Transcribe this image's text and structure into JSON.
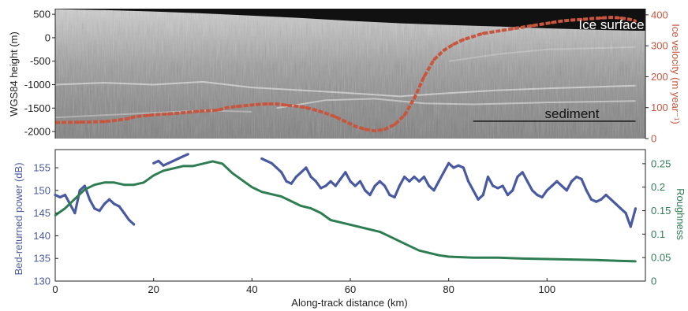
{
  "chart_data": [
    {
      "type": "line",
      "panel": "radargram",
      "image_labels": [
        "Ice surface",
        "sediment"
      ],
      "ylabel_left": "WGS84 height (m)",
      "ylabel_right": "Ice velocity (m year⁻¹)",
      "yticks_left": [
        500,
        0,
        -500,
        -1000,
        -1500,
        -2000
      ],
      "yticks_right": [
        400,
        300,
        200,
        100,
        0
      ],
      "ylim_left": [
        -2150,
        620
      ],
      "ylim_right": [
        0,
        420
      ],
      "xlim": [
        0,
        120
      ],
      "colors": {
        "velocity": "#c8553d",
        "sediment_line": "#222222",
        "radar_bg": "#9a9a9a",
        "ice_top": "#111111"
      },
      "series": [
        {
          "name": "Ice velocity",
          "x": [
            0,
            5,
            10,
            13,
            15,
            16,
            17,
            19,
            21,
            23,
            25,
            27,
            29,
            31,
            33,
            35,
            37,
            39,
            41,
            43,
            45,
            47,
            49,
            51,
            53,
            55,
            57,
            59,
            61,
            63,
            65,
            67,
            69,
            71,
            73,
            75,
            77,
            79,
            81,
            83,
            85,
            87,
            89,
            91,
            93,
            95,
            97,
            99,
            101,
            103,
            105,
            107,
            109,
            111,
            113,
            115,
            117,
            118
          ],
          "values": [
            52,
            53,
            55,
            60,
            65,
            70,
            72,
            75,
            78,
            80,
            82,
            85,
            88,
            90,
            92,
            100,
            104,
            107,
            110,
            112,
            112,
            108,
            105,
            100,
            92,
            82,
            70,
            55,
            40,
            30,
            25,
            30,
            45,
            75,
            130,
            200,
            255,
            285,
            305,
            320,
            330,
            340,
            345,
            350,
            355,
            360,
            365,
            370,
            375,
            380,
            383,
            385,
            388,
            390,
            392,
            390,
            385,
            380
          ]
        },
        {
          "name": "Ice surface",
          "x": [
            0,
            10,
            20,
            30,
            40,
            50,
            60,
            70,
            80,
            90,
            100,
            110,
            118
          ],
          "values": [
            610,
            590,
            560,
            520,
            470,
            420,
            360,
            310,
            270,
            240,
            200,
            170,
            150
          ]
        },
        {
          "name": "sediment",
          "x": [
            85,
            118
          ],
          "values": [
            -1780,
            -1780
          ]
        }
      ]
    },
    {
      "type": "line",
      "panel": "bed power and roughness",
      "xlabel": "Along-track distance (km)",
      "ylabel_left": "Bed-returned power (dB)",
      "ylabel_right": "Roughness",
      "xticks": [
        0,
        20,
        40,
        60,
        80,
        100
      ],
      "yticks_left": [
        155,
        150,
        145,
        140,
        135,
        130
      ],
      "yticks_right": [
        0.25,
        0.2,
        0.15,
        0.1,
        0.05,
        0
      ],
      "xlim": [
        0,
        120
      ],
      "ylim_left": [
        130,
        159
      ],
      "ylim_right": [
        0,
        0.28
      ],
      "colors": {
        "power": "#4a5aa0",
        "roughness": "#2e7d52"
      },
      "series": [
        {
          "name": "Bed-returned power",
          "x": [
            0,
            1,
            2,
            3,
            4,
            5,
            6,
            7,
            8,
            9,
            10,
            11,
            12,
            13,
            14,
            15,
            16
          ],
          "values": [
            149,
            148.5,
            149,
            147,
            145,
            150,
            151,
            148,
            146,
            145.5,
            147,
            148,
            147,
            146.5,
            145,
            143.5,
            142.5
          ]
        },
        {
          "name": "Bed-returned power (2)",
          "x": [
            20,
            21,
            22,
            23,
            24,
            25,
            26,
            27
          ],
          "values": [
            156,
            156.5,
            155.5,
            156,
            156.5,
            157,
            157.5,
            158
          ]
        },
        {
          "name": "Bed-returned power (3)",
          "x": [
            42,
            43,
            44,
            45,
            46,
            47,
            48,
            49,
            50,
            51,
            52,
            53,
            54,
            55,
            56,
            57,
            58,
            59,
            60,
            61,
            62,
            63,
            64,
            65,
            66,
            67,
            68,
            69,
            70,
            71,
            72,
            73,
            74,
            75,
            76,
            77,
            78,
            79,
            80,
            81,
            82,
            83,
            84,
            85,
            86,
            87,
            88,
            89,
            90,
            91,
            92,
            93,
            94,
            95,
            96,
            97,
            98,
            99,
            100,
            101,
            102,
            103,
            104,
            105,
            106,
            107,
            108,
            109,
            110,
            111,
            112,
            113,
            114,
            115,
            116,
            117,
            118
          ],
          "values": [
            157,
            156.5,
            156,
            155,
            154,
            152,
            151.5,
            153,
            154,
            155,
            153,
            152,
            150.5,
            151,
            152,
            151,
            152.5,
            154,
            152,
            151,
            152,
            150,
            149,
            151,
            152,
            151,
            149,
            148.5,
            151,
            153,
            152,
            153,
            152,
            153,
            151,
            150,
            152,
            154,
            156,
            155,
            155.5,
            155,
            152,
            150,
            148,
            149,
            153,
            151,
            150.5,
            151,
            149,
            150,
            153,
            154,
            152,
            150,
            149,
            148.5,
            150,
            151,
            152,
            151,
            150,
            152,
            153,
            152.5,
            150,
            148,
            147.5,
            148,
            149,
            148,
            147,
            146,
            145,
            142,
            146
          ]
        },
        {
          "name": "Roughness",
          "x": [
            0,
            2,
            4,
            6,
            8,
            10,
            12,
            14,
            16,
            18,
            20,
            22,
            24,
            26,
            28,
            30,
            32,
            34,
            36,
            38,
            40,
            42,
            44,
            46,
            48,
            50,
            52,
            54,
            56,
            58,
            60,
            62,
            64,
            66,
            68,
            70,
            72,
            74,
            76,
            78,
            80,
            85,
            90,
            95,
            100,
            105,
            110,
            115,
            118
          ],
          "values": [
            0.14,
            0.155,
            0.175,
            0.195,
            0.205,
            0.21,
            0.21,
            0.205,
            0.205,
            0.21,
            0.225,
            0.235,
            0.24,
            0.245,
            0.245,
            0.25,
            0.255,
            0.25,
            0.23,
            0.215,
            0.2,
            0.19,
            0.185,
            0.18,
            0.17,
            0.16,
            0.155,
            0.145,
            0.13,
            0.125,
            0.12,
            0.115,
            0.11,
            0.105,
            0.095,
            0.085,
            0.075,
            0.065,
            0.06,
            0.055,
            0.052,
            0.05,
            0.05,
            0.048,
            0.047,
            0.046,
            0.045,
            0.043,
            0.042
          ]
        }
      ]
    }
  ]
}
